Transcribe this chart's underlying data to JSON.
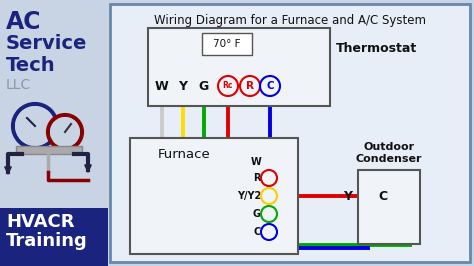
{
  "title": "Wiring Diagram for a Furnace and A/C System",
  "bg_main": "#e8eef8",
  "bg_sidebar": "#c8d4e4",
  "bg_sidebar_dark": "#1a237e",
  "thermostat_temp": "70° F",
  "thermostat_terminals": [
    "W",
    "Y",
    "G",
    "Rc",
    "R",
    "C"
  ],
  "furnace_terminals": [
    "W",
    "R",
    "Y/Y2",
    "G",
    "C"
  ],
  "condenser_label": "Outdoor\nCondenser",
  "wire_W": "#cccccc",
  "wire_Y": "#ffdd00",
  "wire_G": "#00aa00",
  "wire_R": "#dd0000",
  "wire_C": "#0000dd",
  "sidebar_text_color": "#1a237e",
  "sidebar_gray_color": "#8899aa",
  "gauge_blue": "#1a237e",
  "gauge_red": "#880000"
}
